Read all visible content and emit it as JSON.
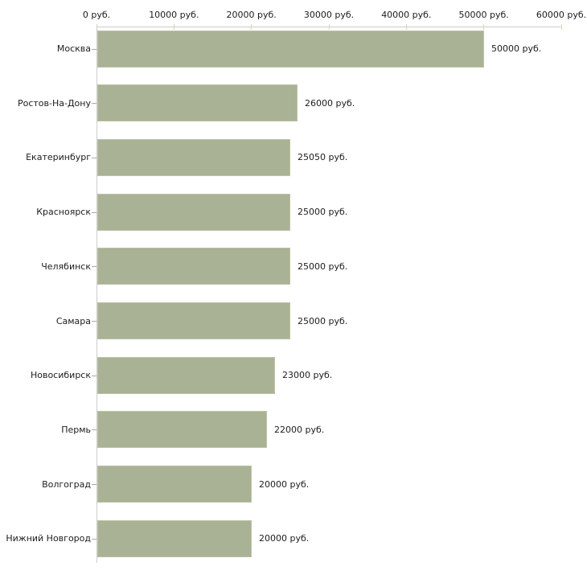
{
  "chart_data": {
    "type": "bar",
    "orientation": "horizontal",
    "title": "",
    "categories": [
      "Москва",
      "Ростов-На-Дону",
      "Екатеринбург",
      "Красноярск",
      "Челябинск",
      "Самара",
      "Новосибирск",
      "Пермь",
      "Волгоград",
      "Нижний Новгород"
    ],
    "values": [
      50000,
      26000,
      25050,
      25000,
      25000,
      25000,
      23000,
      22000,
      20000,
      20000
    ],
    "value_labels": [
      "50000 руб.",
      "26000 руб.",
      "25050 руб.",
      "25000 руб.",
      "25000 руб.",
      "25000 руб.",
      "23000 руб.",
      "22000 руб.",
      "20000 руб.",
      "20000 руб."
    ],
    "x_axis": {
      "position": "top",
      "tick_values": [
        0,
        10000,
        20000,
        30000,
        40000,
        50000,
        60000
      ],
      "tick_labels": [
        "0 руб.",
        "10000 руб.",
        "20000 руб.",
        "30000 руб.",
        "40000 руб.",
        "50000 руб.",
        "60000 руб."
      ]
    },
    "xlim": [
      0,
      60000
    ],
    "grid": false,
    "legend": false,
    "unit": "руб.",
    "bar_value_label_position": "right-of-bar"
  },
  "colors": {
    "bar_fill": "#a9b294",
    "bar_border": "#bcc2a6",
    "axis_line": "#cccccc",
    "axis_tick": "#d4d8b2",
    "category_tick": "#aaaaaa",
    "text": "#1c1c1c",
    "background": "#ffffff"
  }
}
